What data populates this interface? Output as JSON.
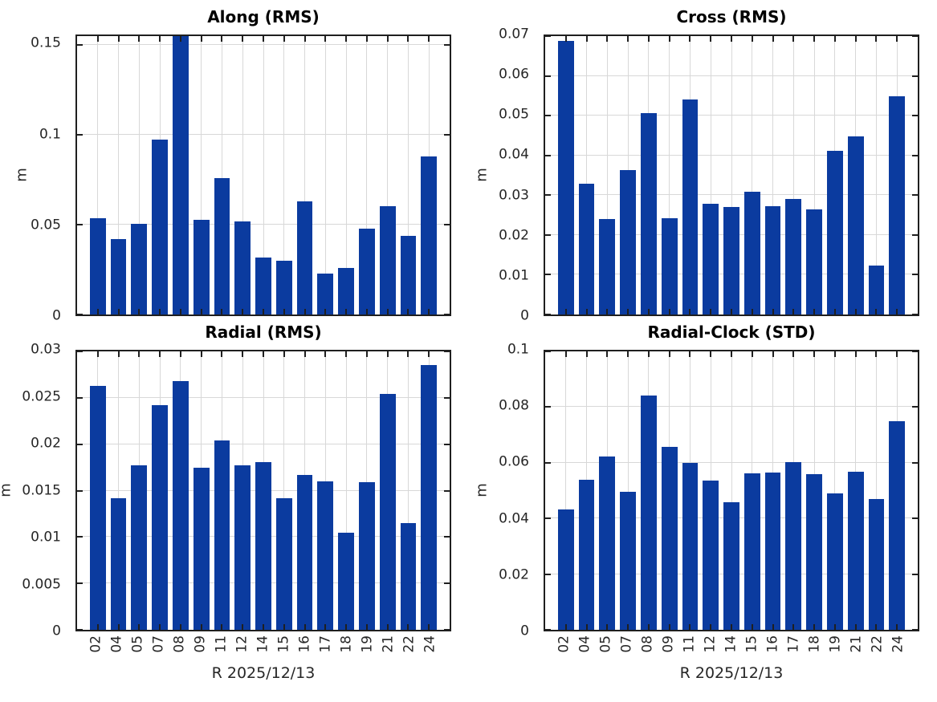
{
  "figure": {
    "background": "#ffffff",
    "bar_color": "#0b3b9f",
    "grid_color": "#d8d8d8",
    "axis_color": "#1f1f1f",
    "text_color": "#262626",
    "layout": "2x2 subplots",
    "grid": true,
    "legend": "none"
  },
  "chart_data": [
    {
      "type": "bar",
      "title": "Along (RMS)",
      "ylabel": "m",
      "xlabel": "",
      "show_xtick_labels": false,
      "categories": [
        "02",
        "04",
        "05",
        "07",
        "08",
        "09",
        "11",
        "12",
        "14",
        "15",
        "16",
        "17",
        "18",
        "19",
        "21",
        "22",
        "24"
      ],
      "values": [
        0.0536,
        0.0419,
        0.0503,
        0.0975,
        0.155,
        0.0529,
        0.0758,
        0.0517,
        0.0319,
        0.03,
        0.0629,
        0.023,
        0.0259,
        0.0477,
        0.0603,
        0.0437,
        0.0879
      ],
      "ylim": [
        0,
        0.155
      ],
      "ytick_values": [
        0,
        0.05,
        0.1,
        0.15
      ],
      "ytick_labels": [
        "0",
        "0.05",
        "0.1",
        "0.15"
      ],
      "note_max_bar": "bar 08 reaches top of axis (clipped)"
    },
    {
      "type": "bar",
      "title": "Cross (RMS)",
      "ylabel": "m",
      "xlabel": "",
      "show_xtick_labels": false,
      "categories": [
        "02",
        "04",
        "05",
        "07",
        "08",
        "09",
        "11",
        "12",
        "14",
        "15",
        "16",
        "17",
        "18",
        "19",
        "21",
        "22",
        "24"
      ],
      "values": [
        0.0687,
        0.0329,
        0.0241,
        0.0364,
        0.0506,
        0.0242,
        0.0541,
        0.0278,
        0.027,
        0.0309,
        0.0273,
        0.0291,
        0.0265,
        0.0411,
        0.0447,
        0.0124,
        0.0549
      ],
      "ylim": [
        0,
        0.07
      ],
      "ytick_values": [
        0,
        0.01,
        0.02,
        0.03,
        0.04,
        0.05,
        0.06,
        0.07
      ],
      "ytick_labels": [
        "0",
        "0.01",
        "0.02",
        "0.03",
        "0.04",
        "0.05",
        "0.06",
        "0.07"
      ]
    },
    {
      "type": "bar",
      "title": "Radial (RMS)",
      "ylabel": "m",
      "xlabel": "R 2025/12/13",
      "show_xtick_labels": true,
      "categories": [
        "02",
        "04",
        "05",
        "07",
        "08",
        "09",
        "11",
        "12",
        "14",
        "15",
        "16",
        "17",
        "18",
        "19",
        "21",
        "22",
        "24"
      ],
      "values": [
        0.0263,
        0.0142,
        0.0177,
        0.0242,
        0.0268,
        0.0175,
        0.0204,
        0.0177,
        0.0181,
        0.0142,
        0.0167,
        0.016,
        0.0105,
        0.0159,
        0.0254,
        0.0115,
        0.0285
      ],
      "ylim": [
        0,
        0.03
      ],
      "ytick_values": [
        0,
        0.005,
        0.01,
        0.015,
        0.02,
        0.025,
        0.03
      ],
      "ytick_labels": [
        "0",
        "0.005",
        "0.01",
        "0.015",
        "0.02",
        "0.025",
        "0.03"
      ]
    },
    {
      "type": "bar",
      "title": "Radial-Clock (STD)",
      "ylabel": "m",
      "xlabel": "R 2025/12/13",
      "show_xtick_labels": true,
      "categories": [
        "02",
        "04",
        "05",
        "07",
        "08",
        "09",
        "11",
        "12",
        "14",
        "15",
        "16",
        "17",
        "18",
        "19",
        "21",
        "22",
        "24"
      ],
      "values": [
        0.0432,
        0.0538,
        0.0623,
        0.0495,
        0.0841,
        0.0657,
        0.06,
        0.0536,
        0.0457,
        0.0562,
        0.0566,
        0.0601,
        0.0558,
        0.049,
        0.0569,
        0.0471,
        0.0749
      ],
      "ylim": [
        0,
        0.1
      ],
      "ytick_values": [
        0,
        0.02,
        0.04,
        0.06,
        0.08,
        0.1
      ],
      "ytick_labels": [
        "0",
        "0.02",
        "0.04",
        "0.06",
        "0.08",
        "0.1"
      ]
    }
  ]
}
